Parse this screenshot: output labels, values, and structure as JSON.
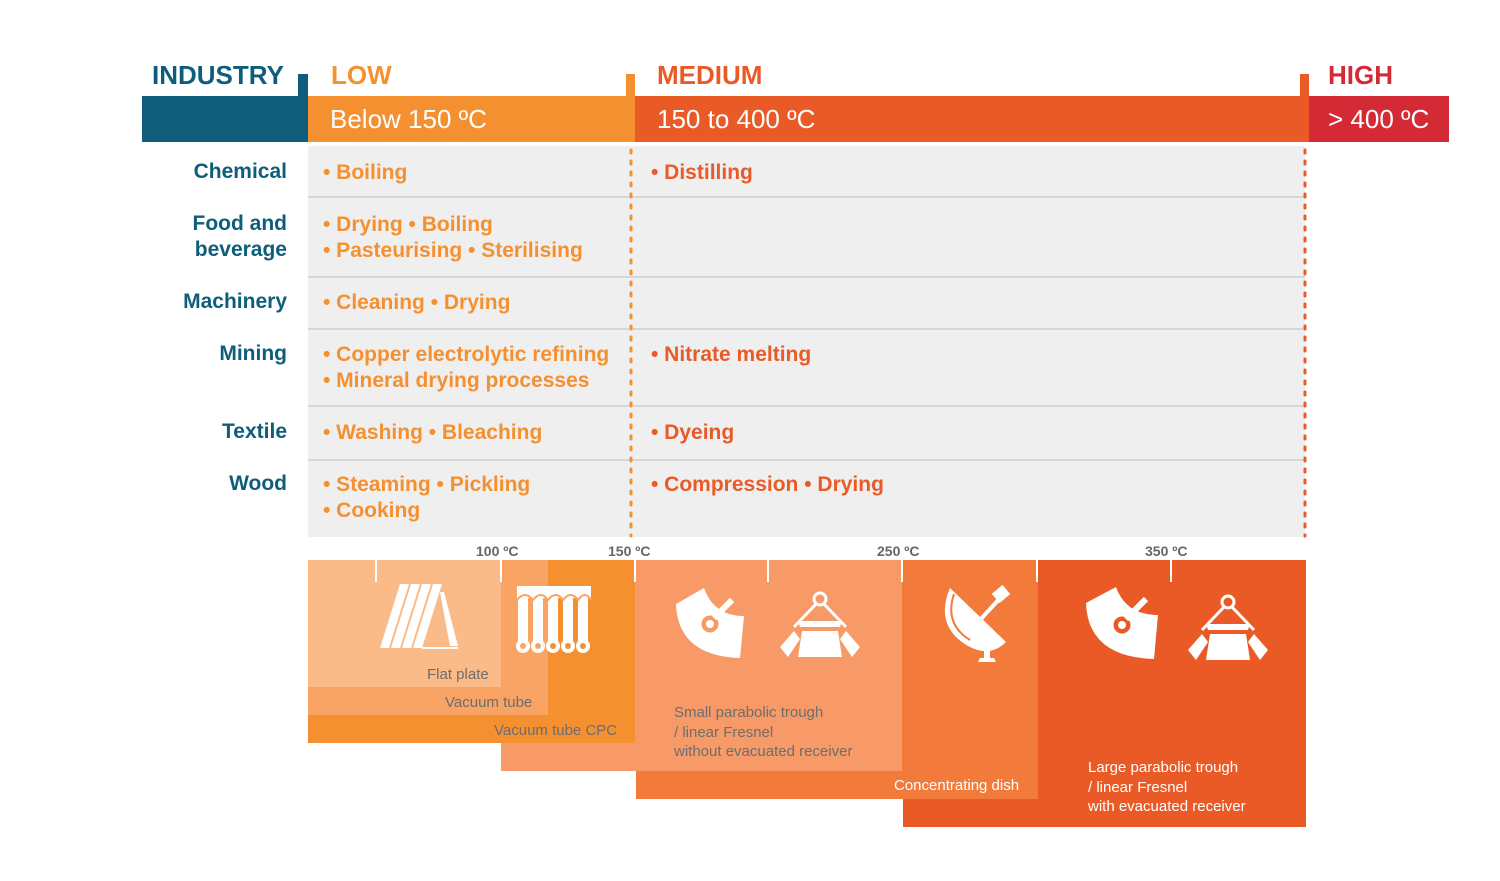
{
  "header": {
    "industry": "INDUSTRY",
    "low": "LOW",
    "medium": "MEDIUM",
    "high": "HIGH",
    "low_range": "Below 150 ºC",
    "medium_range": "150 to 400 ºC",
    "high_range": "> 400 ºC"
  },
  "rows": [
    {
      "label": "Chemical",
      "low": [
        "• Boiling"
      ],
      "medium": [
        "• Distilling"
      ]
    },
    {
      "label": "Food and beverage",
      "label_lines": [
        "Food and",
        "beverage"
      ],
      "low": [
        "• Drying • Boiling",
        "• Pasteurising • Sterilising"
      ],
      "medium": []
    },
    {
      "label": "Machinery",
      "low": [
        "• Cleaning • Drying"
      ],
      "medium": []
    },
    {
      "label": "Mining",
      "low": [
        "• Copper electrolytic refining",
        "• Mineral drying processes"
      ],
      "medium": [
        "• Nitrate melting"
      ]
    },
    {
      "label": "Textile",
      "low": [
        "• Washing • Bleaching"
      ],
      "medium": [
        "• Dyeing"
      ]
    },
    {
      "label": "Wood",
      "low": [
        "• Steaming • Pickling",
        "• Cooking"
      ],
      "medium": [
        "• Compression • Drying"
      ]
    }
  ],
  "temperature_ticks": [
    "100 ºC",
    "150 ºC",
    "250 ºC",
    "350 ºC"
  ],
  "technologies": [
    {
      "name": "Flat plate",
      "icon": "flat-plate-collector-icon"
    },
    {
      "name": "Vacuum tube",
      "icon": "vacuum-tube-collector-icon"
    },
    {
      "name": "Vacuum tube CPC",
      "icon": "vacuum-tube-cpc-icon"
    },
    {
      "name_lines": [
        "Small parabolic trough",
        "/ linear Fresnel",
        "without evacuated receiver"
      ],
      "icon": "parabolic-trough-icon"
    },
    {
      "name": "Concentrating dish",
      "icon": "concentrating-dish-icon"
    },
    {
      "name_lines": [
        "Large parabolic trough",
        "/ linear Fresnel",
        "with evacuated receiver"
      ],
      "icon": "linear-fresnel-icon"
    }
  ],
  "colors": {
    "industry": "#0e5e7b",
    "low": "#f59030",
    "medium": "#e95a27",
    "high": "#d42a36",
    "row_bg": "#efefef"
  }
}
